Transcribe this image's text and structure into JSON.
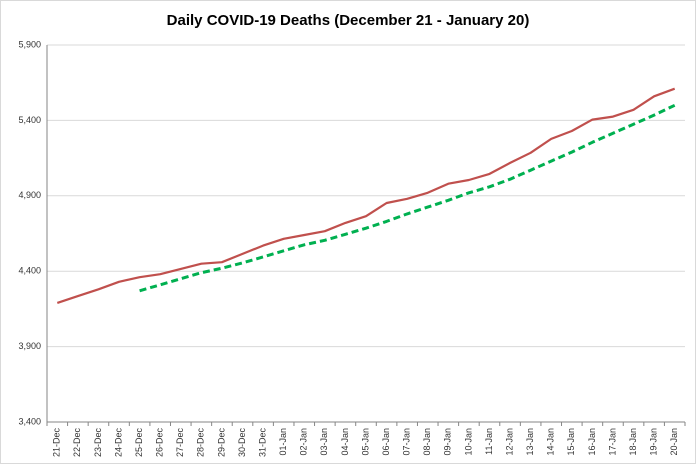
{
  "chart_data": {
    "type": "line",
    "title": "Daily COVID-19 Deaths (December 21 - January 20)",
    "categories": [
      "21-Dec",
      "22-Dec",
      "23-Dec",
      "24-Dec",
      "25-Dec",
      "26-Dec",
      "27-Dec",
      "28-Dec",
      "29-Dec",
      "30-Dec",
      "31-Dec",
      "01-Jan",
      "02-Jan",
      "03-Jan",
      "04-Jan",
      "05-Jan",
      "06-Jan",
      "07-Jan",
      "08-Jan",
      "09-Jan",
      "10-Jan",
      "11-Jan",
      "12-Jan",
      "13-Jan",
      "14-Jan",
      "15-Jan",
      "16-Jan",
      "17-Jan",
      "18-Jan",
      "19-Jan",
      "20-Jan"
    ],
    "series": [
      {
        "color": "#c0504d",
        "dashed": false,
        "values": [
          4190,
          4235,
          4280,
          4330,
          4360,
          4380,
          4415,
          4450,
          4460,
          4515,
          4570,
          4615,
          4640,
          4665,
          4720,
          4765,
          4852,
          4880,
          4920,
          4980,
          5005,
          5045,
          5118,
          5185,
          5277,
          5330,
          5405,
          5425,
          5470,
          5560,
          5610
        ]
      },
      {
        "color": "#00b050",
        "dashed": true,
        "values": [
          null,
          null,
          null,
          null,
          4270,
          4310,
          4350,
          4390,
          4420,
          4455,
          4495,
          4535,
          4575,
          4605,
          4645,
          4685,
          4730,
          4780,
          4825,
          4870,
          4920,
          4960,
          5010,
          5070,
          5130,
          5190,
          5255,
          5315,
          5375,
          5435,
          5500
        ]
      }
    ],
    "ylim": [
      3400,
      5900
    ],
    "yticks": [
      {
        "value": 3400,
        "label": "3,400"
      },
      {
        "value": 3900,
        "label": "3,900"
      },
      {
        "value": 4400,
        "label": "4,400"
      },
      {
        "value": 4900,
        "label": "4,900"
      },
      {
        "value": 5400,
        "label": "5,400"
      },
      {
        "value": 5900,
        "label": "5,900"
      }
    ],
    "grid": true
  }
}
